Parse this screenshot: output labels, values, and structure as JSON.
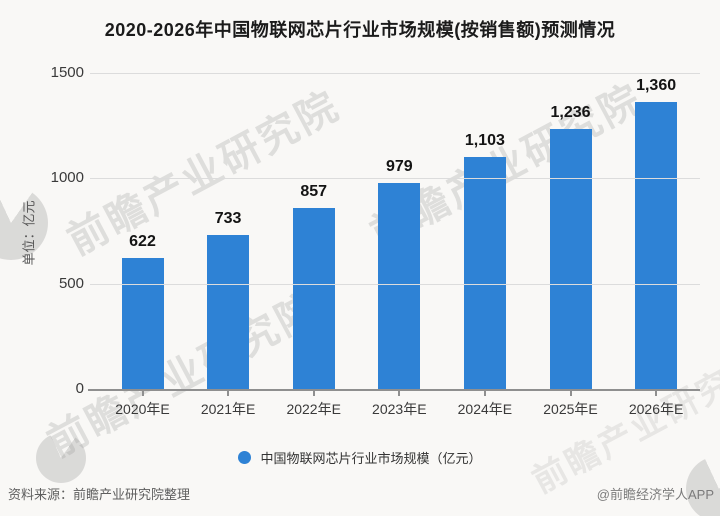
{
  "title": "2020-2026年中国物联网芯片行业市场规模(按销售额)预测情况",
  "chart_data": {
    "type": "bar",
    "title": "2020-2026年中国物联网芯片行业市场规模(按销售额)预测情况",
    "categories": [
      "2020年E",
      "2021年E",
      "2022年E",
      "2023年E",
      "2024年E",
      "2025年E",
      "2026年E"
    ],
    "values": [
      622,
      733,
      857,
      979,
      1103,
      1236,
      1360
    ],
    "value_labels": [
      "622",
      "733",
      "857",
      "979",
      "1,103",
      "1,236",
      "1,360"
    ],
    "xlabel": "",
    "ylabel": "单位：亿元",
    "ylim": [
      0,
      1500
    ],
    "y_ticks": [
      0,
      500,
      1000,
      1500
    ],
    "grid": true,
    "legend": "中国物联网芯片行业市场规模（亿元）",
    "legend_position": "bottom",
    "bar_color": "#2e82d5"
  },
  "y_unit_label": "单位：亿元",
  "legend_item": "中国物联网芯片行业市场规模（亿元）",
  "footer": {
    "source": "资料来源：前瞻产业研究院整理",
    "credit": "@前瞻经济学人APP"
  },
  "watermark": {
    "text": "前瞻产业研究院",
    "color": "#949494"
  },
  "colors": {
    "bar": "#2e82d5",
    "background": "#f9f8f6",
    "gridline": "#dcdcdc"
  }
}
